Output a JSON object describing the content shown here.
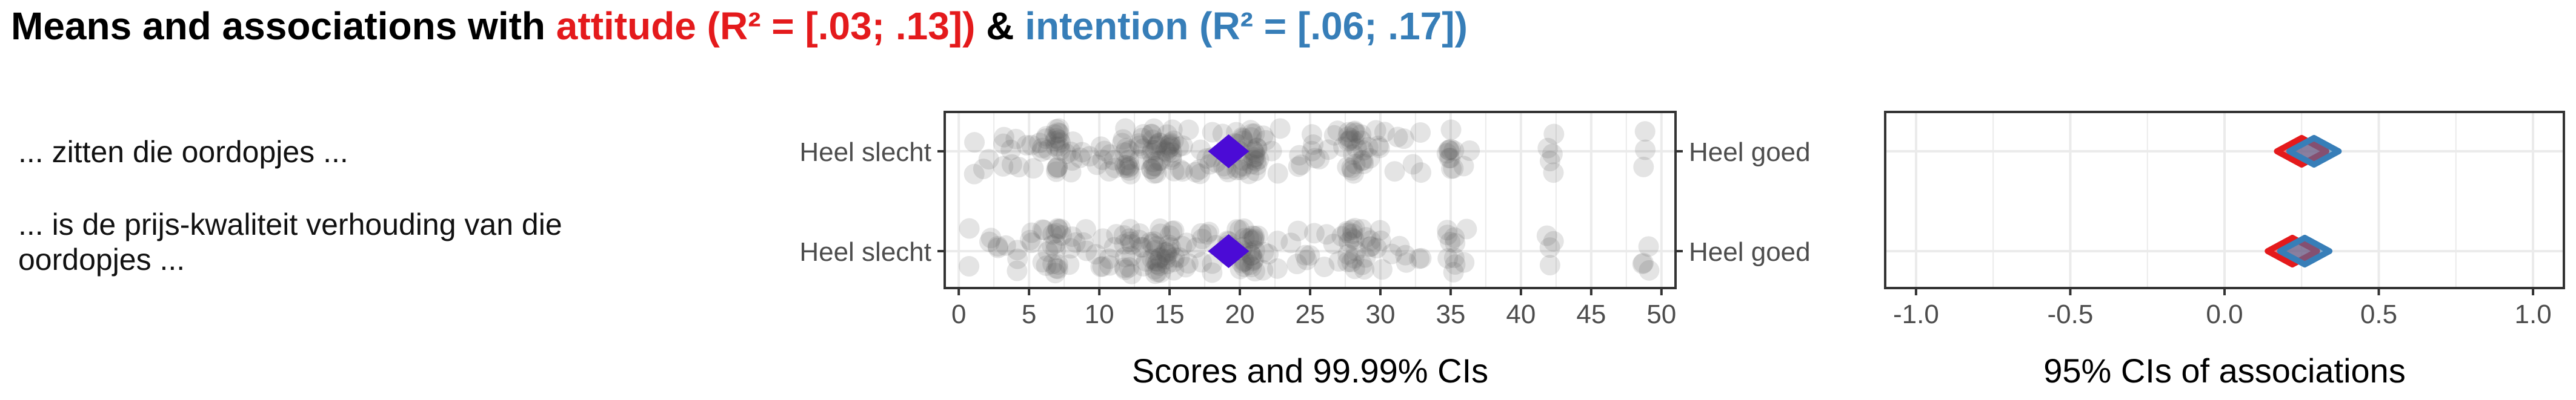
{
  "title": {
    "prefix": "Means and associations with ",
    "attitude": "attitude (R² = [.03; .13])",
    "amp": " & ",
    "intention": "intention (R² = [.06; .17])"
  },
  "colors": {
    "attitude": "#e41a1c",
    "intention": "#377eb8",
    "mean_marker": "#4b0bd6",
    "points": "#555555"
  },
  "items": [
    {
      "label_lines": [
        "... zitten die oordopjes ..."
      ],
      "left_anchor": "Heel slecht",
      "right_anchor": "Heel goed"
    },
    {
      "label_lines": [
        "... is de prijs-kwaliteit verhouding van die",
        "oordopjes ..."
      ],
      "left_anchor": "Heel slecht",
      "right_anchor": "Heel goed"
    }
  ],
  "chart_data": [
    {
      "type": "scatter",
      "xlabel": "Scores and 99.99% CIs",
      "xlim": [
        -1,
        51
      ],
      "xticks": [
        0,
        5,
        10,
        15,
        20,
        25,
        30,
        35,
        40,
        45,
        50
      ],
      "series": [
        {
          "values": [
            {
              "x": 1,
              "n": 2
            },
            {
              "x": 2,
              "n": 2
            },
            {
              "x": 3,
              "n": 3
            },
            {
              "x": 4,
              "n": 4
            },
            {
              "x": 5,
              "n": 3
            },
            {
              "x": 6,
              "n": 6
            },
            {
              "x": 7,
              "n": 16
            },
            {
              "x": 8,
              "n": 5
            },
            {
              "x": 9,
              "n": 3
            },
            {
              "x": 10,
              "n": 4
            },
            {
              "x": 11,
              "n": 4
            },
            {
              "x": 12,
              "n": 14
            },
            {
              "x": 13,
              "n": 6
            },
            {
              "x": 14,
              "n": 20
            },
            {
              "x": 15,
              "n": 14
            },
            {
              "x": 16,
              "n": 5
            },
            {
              "x": 17,
              "n": 4
            },
            {
              "x": 18,
              "n": 5
            },
            {
              "x": 19,
              "n": 4
            },
            {
              "x": 20,
              "n": 12
            },
            {
              "x": 21,
              "n": 18
            },
            {
              "x": 22,
              "n": 3
            },
            {
              "x": 23,
              "n": 2
            },
            {
              "x": 24,
              "n": 3
            },
            {
              "x": 25,
              "n": 4
            },
            {
              "x": 26,
              "n": 2
            },
            {
              "x": 27,
              "n": 3
            },
            {
              "x": 28,
              "n": 16
            },
            {
              "x": 29,
              "n": 8
            },
            {
              "x": 30,
              "n": 4
            },
            {
              "x": 31,
              "n": 2
            },
            {
              "x": 32,
              "n": 2
            },
            {
              "x": 33,
              "n": 2
            },
            {
              "x": 35,
              "n": 10
            },
            {
              "x": 36,
              "n": 2
            },
            {
              "x": 42,
              "n": 5
            },
            {
              "x": 49,
              "n": 3
            }
          ],
          "mean": 19.2
        },
        {
          "values": [
            {
              "x": 1,
              "n": 2
            },
            {
              "x": 2,
              "n": 2
            },
            {
              "x": 3,
              "n": 3
            },
            {
              "x": 4,
              "n": 3
            },
            {
              "x": 5,
              "n": 3
            },
            {
              "x": 6,
              "n": 5
            },
            {
              "x": 7,
              "n": 14
            },
            {
              "x": 8,
              "n": 4
            },
            {
              "x": 9,
              "n": 3
            },
            {
              "x": 10,
              "n": 4
            },
            {
              "x": 11,
              "n": 4
            },
            {
              "x": 12,
              "n": 12
            },
            {
              "x": 13,
              "n": 6
            },
            {
              "x": 14,
              "n": 18
            },
            {
              "x": 15,
              "n": 14
            },
            {
              "x": 16,
              "n": 5
            },
            {
              "x": 17,
              "n": 4
            },
            {
              "x": 18,
              "n": 5
            },
            {
              "x": 19,
              "n": 4
            },
            {
              "x": 20,
              "n": 12
            },
            {
              "x": 21,
              "n": 16
            },
            {
              "x": 22,
              "n": 3
            },
            {
              "x": 23,
              "n": 2
            },
            {
              "x": 24,
              "n": 3
            },
            {
              "x": 25,
              "n": 4
            },
            {
              "x": 26,
              "n": 2
            },
            {
              "x": 27,
              "n": 3
            },
            {
              "x": 28,
              "n": 14
            },
            {
              "x": 29,
              "n": 8
            },
            {
              "x": 30,
              "n": 4
            },
            {
              "x": 31,
              "n": 2
            },
            {
              "x": 32,
              "n": 2
            },
            {
              "x": 33,
              "n": 2
            },
            {
              "x": 35,
              "n": 9
            },
            {
              "x": 36,
              "n": 2
            },
            {
              "x": 42,
              "n": 4
            },
            {
              "x": 49,
              "n": 4
            }
          ],
          "mean": 19.2
        }
      ]
    },
    {
      "type": "diamond",
      "xlabel": "95% CIs of associations",
      "xlim": [
        -1.1,
        1.1
      ],
      "xticks": [
        -1.0,
        -0.5,
        0.0,
        0.5,
        1.0
      ],
      "xtick_labels": [
        "-1.0",
        "-0.5",
        "0.0",
        "0.5",
        "1.0"
      ],
      "series": [
        {
          "name": "attitude",
          "values": [
            {
              "lo": 0.17,
              "est": 0.25,
              "hi": 0.33
            },
            {
              "lo": 0.14,
              "est": 0.22,
              "hi": 0.3
            }
          ]
        },
        {
          "name": "intention",
          "values": [
            {
              "lo": 0.21,
              "est": 0.29,
              "hi": 0.37
            },
            {
              "lo": 0.18,
              "est": 0.26,
              "hi": 0.34
            }
          ]
        }
      ]
    }
  ]
}
